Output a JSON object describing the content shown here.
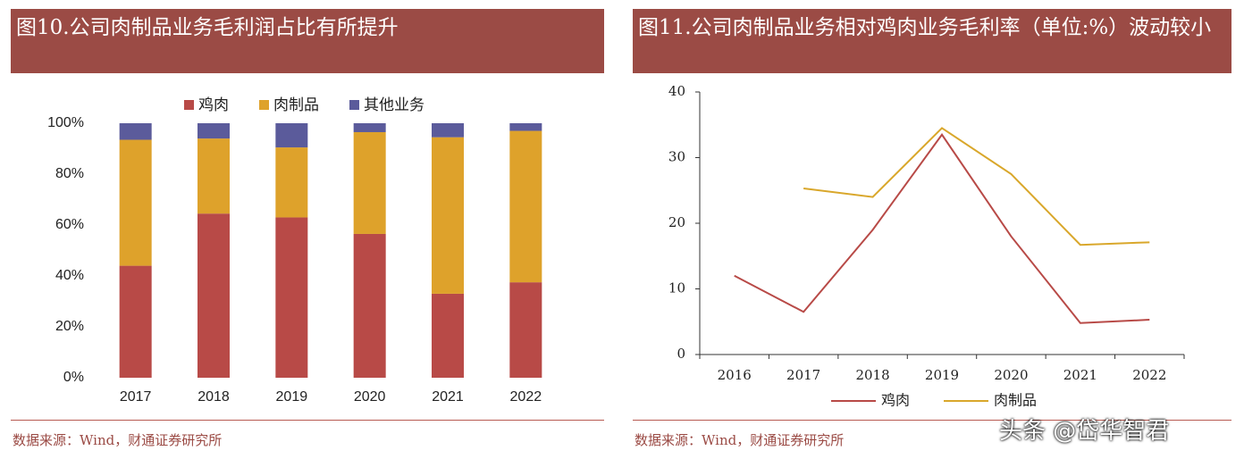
{
  "chart_data": [
    {
      "type": "bar",
      "stacked": true,
      "title": "图10.公司肉制品业务毛利润占比有所提升",
      "categories": [
        "2017",
        "2018",
        "2019",
        "2020",
        "2021",
        "2022"
      ],
      "series": [
        {
          "name": "鸡肉",
          "color": "#b84a47",
          "values": [
            44,
            64.5,
            63,
            56.5,
            33,
            37.5
          ]
        },
        {
          "name": "肉制品",
          "color": "#dea22b",
          "values": [
            49.5,
            29.5,
            27.5,
            40,
            61.5,
            59.5
          ]
        },
        {
          "name": "其他业务",
          "color": "#5b5b9b",
          "values": [
            6.5,
            6,
            9.5,
            3.5,
            5.5,
            3
          ]
        }
      ],
      "ylim": [
        0,
        100
      ],
      "yticks": [
        {
          "value": 0,
          "label": "0%"
        },
        {
          "value": 20,
          "label": "20%"
        },
        {
          "value": 40,
          "label": "40%"
        },
        {
          "value": 60,
          "label": "60%"
        },
        {
          "value": 80,
          "label": "80%"
        },
        {
          "value": 100,
          "label": "100%"
        }
      ],
      "grid": false,
      "legend": "top",
      "source": "数据来源：Wind，财通证券研究所"
    },
    {
      "type": "line",
      "title": "图11.公司肉制品业务相对鸡肉业务毛利率（单位:%）波动较小",
      "categories": [
        "2016",
        "2017",
        "2018",
        "2019",
        "2020",
        "2021",
        "2022"
      ],
      "series": [
        {
          "name": "鸡肉",
          "color": "#b84a47",
          "values": [
            12,
            6.5,
            19,
            33.5,
            18,
            4.8,
            5.3
          ]
        },
        {
          "name": "肉制品",
          "color": "#d9a72b",
          "values": [
            null,
            25.3,
            24,
            34.5,
            27.5,
            16.7,
            17.1
          ]
        }
      ],
      "ylim": [
        0,
        40
      ],
      "yticks": [
        0,
        10,
        20,
        30,
        40
      ],
      "grid": false,
      "legend": "bottom",
      "source": "数据来源：Wind，财通证券研究所"
    }
  ],
  "watermark": "头条 @岱华智君"
}
